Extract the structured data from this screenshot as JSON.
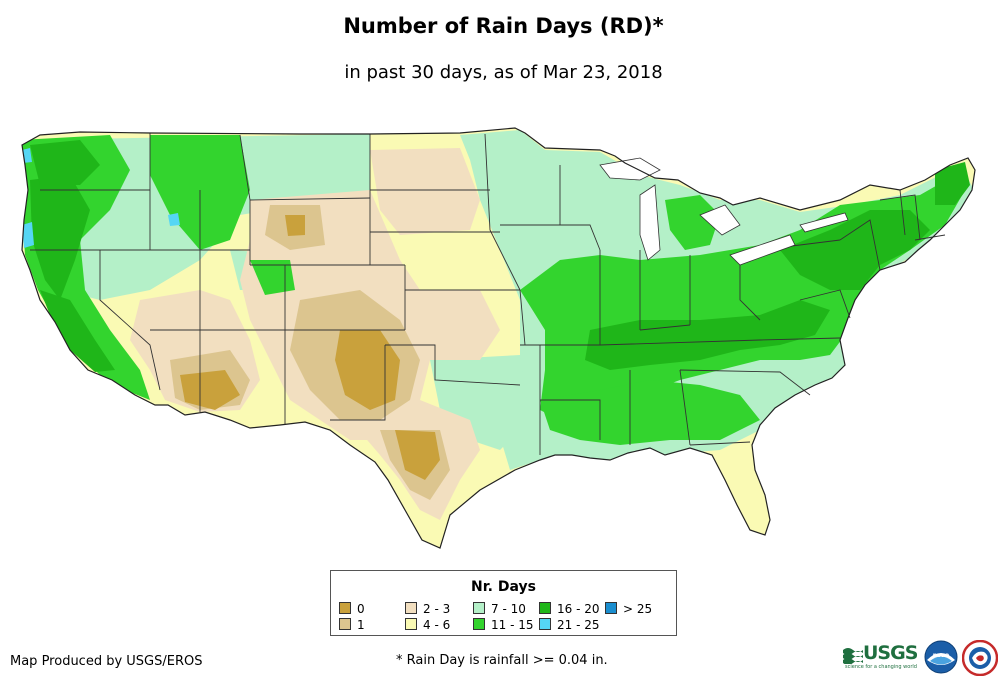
{
  "title": "Number of Rain Days (RD)*",
  "subtitle": "in past 30 days, as of Mar 23, 2018",
  "legend": {
    "title": "Nr. Days",
    "items": [
      {
        "label": "0",
        "color": "#c9a13c"
      },
      {
        "label": "1",
        "color": "#dcc58f"
      },
      {
        "label": "2 - 3",
        "color": "#f2dfc0"
      },
      {
        "label": "4 - 6",
        "color": "#fafab4"
      },
      {
        "label": "7 - 10",
        "color": "#b4f0c8"
      },
      {
        "label": "11 - 15",
        "color": "#33d42e"
      },
      {
        "label": "16 - 20",
        "color": "#1fb619"
      },
      {
        "label": "21 - 25",
        "color": "#55d6f4"
      },
      {
        "label": "> 25",
        "color": "#1a8ecf"
      }
    ]
  },
  "footer": {
    "credit": "Map Produced by USGS/EROS",
    "note": "* Rain Day is rainfall >= 0.04 in."
  },
  "logos": {
    "usgs": "USGS",
    "usgs_tagline": "science for a changing world",
    "noaa": "noaa"
  }
}
